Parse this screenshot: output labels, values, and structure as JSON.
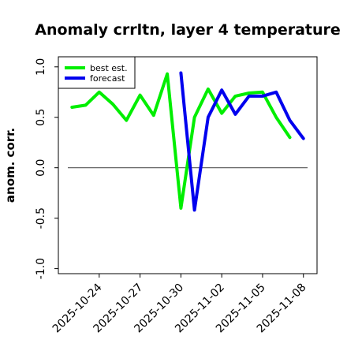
{
  "chart_data": {
    "type": "line",
    "title": "Anomaly crrltn, layer 4 temperature",
    "ylabel": "anom. corr.",
    "xlabel": "",
    "ylim": [
      -1.05,
      1.1
    ],
    "yticks": [
      "1.0",
      "0.5",
      "0.0",
      "-0.5",
      "-1.0"
    ],
    "ytick_values": [
      1.0,
      0.5,
      0.0,
      -0.5,
      -1.0
    ],
    "x_dates": [
      "2025-10-22",
      "2025-10-23",
      "2025-10-24",
      "2025-10-25",
      "2025-10-26",
      "2025-10-27",
      "2025-10-28",
      "2025-10-29",
      "2025-10-30",
      "2025-10-31",
      "2025-11-01",
      "2025-11-02",
      "2025-11-03",
      "2025-11-04",
      "2025-11-05",
      "2025-11-06",
      "2025-11-07",
      "2025-11-08"
    ],
    "xticks": [
      "2025-10-24",
      "2025-10-27",
      "2025-10-30",
      "2025-11-02",
      "2025-11-05",
      "2025-11-08"
    ],
    "xtick_colors": [
      "#000000",
      "#000000",
      "#008000",
      "#000000",
      "#000000",
      "#000000"
    ],
    "xlim": [
      "2025-10-21",
      "2025-11-09"
    ],
    "reference_line": 0.0,
    "legend_position": "top-left",
    "grid": false,
    "series": [
      {
        "name": "best est.",
        "color": "#00ee00",
        "x_start_index": 0,
        "values": [
          0.6,
          0.62,
          0.75,
          0.63,
          0.47,
          0.72,
          0.52,
          0.93,
          -0.4,
          0.5,
          0.78,
          0.54,
          0.71,
          0.74,
          0.75,
          0.5,
          0.3
        ]
      },
      {
        "name": "forecast",
        "color": "#0000ee",
        "x_start_index": 8,
        "values": [
          0.94,
          -0.42,
          0.5,
          0.77,
          0.53,
          0.71,
          0.71,
          0.75,
          0.47,
          0.29
        ]
      }
    ]
  }
}
